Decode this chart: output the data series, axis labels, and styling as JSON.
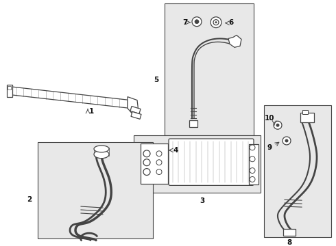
{
  "bg_color": "#f5f5f5",
  "white": "#ffffff",
  "black": "#111111",
  "dark": "#444444",
  "mid_gray": "#888888",
  "box_bg": "#e8e8e8",
  "figsize": [
    4.9,
    3.6
  ],
  "dpi": 100
}
